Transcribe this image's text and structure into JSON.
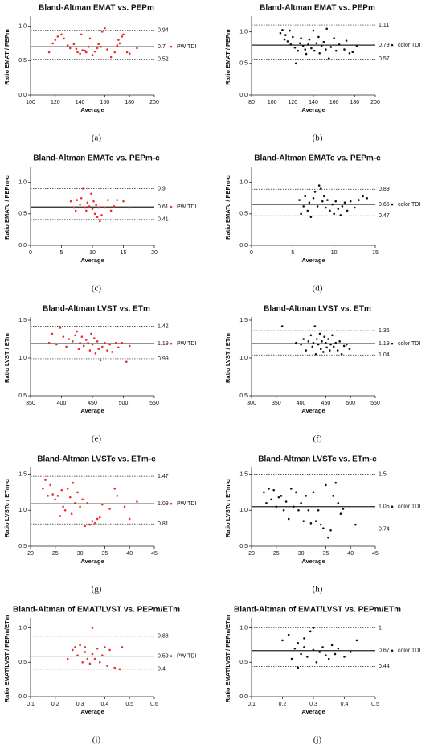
{
  "chart_data": [
    {
      "type": "scatter",
      "title": "Bland-Altman EMAT vs. PEPm",
      "x_label": "Average",
      "y_label": "Ratio EMAT / PEPm",
      "panel_label": "(a)",
      "xlim": [
        100,
        200
      ],
      "ylim": [
        0,
        1.1
      ],
      "xticks": [
        100,
        120,
        140,
        160,
        180,
        200
      ],
      "yticks": [
        {
          "value": 0,
          "label": "0.0"
        },
        0.5,
        {
          "value": 1,
          "label": "1.0"
        }
      ],
      "limits": {
        "upper": 0.94,
        "mean": 0.7,
        "lower": 0.52
      },
      "series": [
        {
          "name": "PW TDI",
          "color": "#e8302a",
          "x": [
            115,
            118,
            120,
            122,
            125,
            127,
            130,
            132,
            135,
            137,
            138,
            140,
            141,
            142,
            144,
            145,
            147,
            148,
            150,
            152,
            154,
            155,
            157,
            158,
            160,
            162,
            165,
            168,
            170,
            171,
            172,
            174,
            175,
            178,
            180,
            186
          ],
          "values": [
            0.62,
            0.75,
            0.8,
            0.85,
            0.88,
            0.82,
            0.72,
            0.68,
            0.74,
            0.67,
            0.62,
            0.6,
            0.88,
            0.65,
            0.64,
            0.62,
            0.7,
            0.82,
            0.58,
            0.63,
            0.68,
            0.74,
            0.7,
            0.92,
            0.97,
            0.66,
            0.55,
            0.62,
            0.72,
            0.8,
            0.75,
            0.85,
            0.88,
            0.62,
            0.6,
            0.68
          ]
        }
      ]
    },
    {
      "type": "scatter",
      "title": "Bland-Altman EMAT vs. PEPm",
      "x_label": "Average",
      "y_label": "Ratio EMAT / PEPm",
      "panel_label": "(b)",
      "xlim": [
        80,
        200
      ],
      "ylim": [
        0,
        1.2
      ],
      "xticks": [
        80,
        100,
        120,
        140,
        160,
        180,
        200
      ],
      "yticks": [
        {
          "value": 0,
          "label": "0.0"
        },
        0.5,
        {
          "value": 1,
          "label": "1.0"
        }
      ],
      "limits": {
        "upper": 1.11,
        "mean": 0.79,
        "lower": 0.57
      },
      "series": [
        {
          "name": "color TDI",
          "color": "#111111",
          "x": [
            108,
            110,
            112,
            113,
            115,
            117,
            118,
            120,
            122,
            123,
            125,
            127,
            128,
            130,
            132,
            133,
            135,
            136,
            138,
            140,
            141,
            143,
            145,
            146,
            148,
            150,
            152,
            153,
            155,
            157,
            160,
            162,
            165,
            170,
            172,
            175,
            178,
            182
          ],
          "values": [
            0.98,
            1.03,
            0.88,
            0.95,
            0.85,
            1.02,
            0.8,
            0.92,
            0.75,
            0.5,
            0.7,
            0.82,
            0.9,
            0.78,
            0.72,
            0.65,
            0.8,
            0.88,
            0.74,
            1.02,
            0.7,
            0.82,
            0.92,
            0.66,
            0.78,
            0.84,
            0.72,
            1.05,
            0.58,
            0.76,
            0.9,
            0.7,
            0.8,
            0.72,
            0.86,
            0.66,
            0.68,
            0.78
          ]
        }
      ]
    },
    {
      "type": "scatter",
      "title": "Bland-Altman EMATc vs. PEPm-c",
      "x_label": "Average",
      "y_label": "Ratio EMATc / PEPm-c",
      "panel_label": "(c)",
      "xlim": [
        0,
        20
      ],
      "ylim": [
        0,
        1.2
      ],
      "xticks": [
        0,
        5,
        10,
        15,
        20
      ],
      "yticks": [
        {
          "value": 0,
          "label": "0.0"
        },
        0.5,
        {
          "value": 1,
          "label": "1.0"
        }
      ],
      "limits": {
        "upper": 0.9,
        "mean": 0.61,
        "lower": 0.41
      },
      "series": [
        {
          "name": "PW TDI",
          "color": "#e8302a",
          "x": [
            6.5,
            7,
            7.3,
            7.5,
            8,
            8.2,
            8.5,
            8.8,
            9,
            9.2,
            9.5,
            9.8,
            10,
            10.2,
            10.4,
            10.6,
            10.8,
            11,
            11.2,
            11.5,
            12,
            12.5,
            13,
            13.5,
            14,
            15,
            16
          ],
          "values": [
            0.7,
            0.6,
            0.55,
            0.72,
            0.65,
            0.75,
            0.9,
            0.6,
            0.55,
            0.68,
            0.62,
            0.82,
            0.58,
            0.7,
            0.5,
            0.64,
            0.45,
            0.6,
            0.38,
            0.48,
            0.6,
            0.72,
            0.55,
            0.62,
            0.72,
            0.7,
            0.6
          ]
        }
      ]
    },
    {
      "type": "scatter",
      "title": "Bland-Altman EMATc vs. PEPm-c",
      "x_label": "Average",
      "y_label": "Ratio EMATc / PEPm-c",
      "panel_label": "(d)",
      "xlim": [
        0,
        15
      ],
      "ylim": [
        0,
        1.2
      ],
      "xticks": [
        0,
        5,
        10,
        15
      ],
      "yticks": [
        {
          "value": 0,
          "label": "0.0"
        },
        0.5,
        {
          "value": 1,
          "label": "1.0"
        }
      ],
      "limits": {
        "upper": 0.89,
        "mean": 0.65,
        "lower": 0.47
      },
      "series": [
        {
          "name": "color TDI",
          "color": "#111111",
          "x": [
            5.8,
            6,
            6.3,
            6.5,
            6.8,
            7,
            7.2,
            7.5,
            7.7,
            8,
            8.2,
            8.4,
            8.6,
            8.8,
            9,
            9.2,
            9.5,
            9.8,
            10,
            10.2,
            10.5,
            10.8,
            11,
            11.3,
            11.6,
            12,
            12.5,
            13,
            13.5,
            14
          ],
          "values": [
            0.72,
            0.5,
            0.62,
            0.78,
            0.55,
            0.68,
            0.45,
            0.75,
            0.85,
            0.62,
            0.95,
            0.9,
            0.7,
            0.78,
            0.6,
            0.72,
            0.55,
            0.65,
            0.5,
            0.7,
            0.58,
            0.48,
            0.62,
            0.68,
            0.55,
            0.7,
            0.6,
            0.72,
            0.78,
            0.75
          ]
        }
      ]
    },
    {
      "type": "scatter",
      "title": "Bland-Altman LVST vs. ETm",
      "x_label": "Average",
      "y_label": "Ratio LVST / ETm",
      "panel_label": "(e)",
      "xlim": [
        350,
        550
      ],
      "ylim": [
        0.5,
        1.5
      ],
      "xticks": [
        350,
        400,
        450,
        500,
        550
      ],
      "yticks": [
        0.5,
        {
          "value": 1,
          "label": "1.0"
        },
        1.5
      ],
      "limits": {
        "upper": 1.42,
        "mean": 1.19,
        "lower": 0.99
      },
      "series": [
        {
          "name": "PW TDI",
          "color": "#e8302a",
          "x": [
            380,
            385,
            392,
            398,
            403,
            408,
            412,
            418,
            422,
            425,
            428,
            430,
            433,
            436,
            440,
            443,
            446,
            448,
            450,
            453,
            455,
            458,
            460,
            463,
            466,
            470,
            474,
            478,
            482,
            488,
            492,
            498,
            505,
            510
          ],
          "values": [
            1.2,
            1.32,
            1.18,
            1.4,
            1.28,
            1.15,
            1.25,
            1.22,
            1.3,
            1.35,
            1.12,
            1.2,
            1.28,
            1.16,
            1.24,
            1.2,
            1.1,
            1.32,
            1.18,
            1.26,
            1.06,
            1.22,
            1.12,
            0.97,
            1.15,
            1.2,
            1.1,
            1.18,
            1.08,
            1.2,
            1.14,
            1.2,
            0.95,
            1.16
          ]
        }
      ]
    },
    {
      "type": "scatter",
      "title": "Bland-Altman LVST vs. ETm",
      "x_label": "Average",
      "y_label": "Ratio LVST / ETm",
      "panel_label": "(f)",
      "xlim": [
        300,
        550
      ],
      "ylim": [
        0.5,
        1.5
      ],
      "xticks": [
        300,
        350,
        400,
        450,
        500,
        550
      ],
      "yticks": [
        0.5,
        {
          "value": 1,
          "label": "1.0"
        },
        1.5
      ],
      "limits": {
        "upper": 1.36,
        "mean": 1.19,
        "lower": 1.04
      },
      "series": [
        {
          "name": "color TDI",
          "color": "#111111",
          "x": [
            362,
            390,
            400,
            405,
            410,
            415,
            420,
            423,
            425,
            428,
            430,
            432,
            435,
            438,
            440,
            442,
            445,
            447,
            450,
            452,
            455,
            458,
            460,
            463,
            466,
            470,
            474,
            478,
            482,
            487,
            492,
            498
          ],
          "values": [
            1.42,
            1.2,
            1.18,
            1.25,
            1.1,
            1.22,
            1.3,
            1.15,
            1.2,
            1.42,
            1.05,
            1.25,
            1.18,
            1.32,
            1.12,
            1.22,
            1.08,
            1.28,
            1.2,
            1.14,
            1.25,
            1.1,
            1.18,
            1.3,
            1.15,
            1.2,
            1.1,
            1.22,
            1.05,
            1.16,
            1.18,
            1.12
          ]
        }
      ]
    },
    {
      "type": "scatter",
      "title": "Bland-Altman LVSTc vs. ETm-c",
      "x_label": "Average",
      "y_label": "Ratio  LVSTc / ETm-c",
      "panel_label": "(g)",
      "xlim": [
        20,
        45
      ],
      "ylim": [
        0.5,
        1.55
      ],
      "xticks": [
        20,
        25,
        30,
        35,
        40,
        45
      ],
      "yticks": [
        0.5,
        {
          "value": 1,
          "label": "1.0"
        },
        1.5
      ],
      "limits": {
        "upper": 1.47,
        "mean": 1.09,
        "lower": 0.81
      },
      "series": [
        {
          "name": "PW TDI",
          "color": "#e8302a",
          "x": [
            22.5,
            23,
            23.5,
            24,
            24.5,
            25,
            25.5,
            26,
            26.3,
            26.6,
            27,
            27.5,
            28,
            28.3,
            28.6,
            29,
            29.5,
            30,
            30.5,
            31,
            31.5,
            32,
            32.5,
            33,
            33.5,
            34,
            34.5,
            36,
            37,
            37.5,
            39,
            40,
            41.5
          ],
          "values": [
            1.3,
            1.42,
            1.2,
            1.35,
            1.22,
            1.15,
            1.2,
            0.92,
            1.28,
            1.05,
            1.0,
            1.3,
            1.18,
            0.95,
            1.38,
            1.1,
            1.25,
            1.05,
            1.15,
            0.78,
            1.1,
            0.8,
            0.85,
            0.82,
            0.88,
            0.9,
            1.08,
            1.02,
            1.3,
            1.2,
            1.05,
            0.88,
            1.12
          ]
        }
      ]
    },
    {
      "type": "scatter",
      "title": "Bland-Altman LVSTc vs. ETm-c",
      "x_label": "Average",
      "y_label": "Ratio  LVSTc / ETm-c",
      "panel_label": "(h)",
      "xlim": [
        20,
        45
      ],
      "ylim": [
        0.5,
        1.55
      ],
      "xticks": [
        20,
        25,
        30,
        35,
        40,
        45
      ],
      "yticks": [
        0.5,
        {
          "value": 1,
          "label": "1.0"
        },
        1.5
      ],
      "limits": {
        "upper": 1.5,
        "mean": 1.05,
        "lower": 0.74
      },
      "series": [
        {
          "name": "color TDI",
          "color": "#111111",
          "x": [
            22.5,
            23,
            23.5,
            24,
            24.5,
            25,
            25.5,
            26,
            26.5,
            27,
            27.5,
            28,
            28.5,
            29,
            29.5,
            30,
            30.5,
            31,
            31.5,
            32,
            32.5,
            33,
            33.5,
            34,
            34.5,
            35,
            35.5,
            36,
            36.5,
            37,
            37.5,
            38,
            38.5,
            41
          ],
          "values": [
            1.25,
            1.1,
            1.3,
            1.15,
            1.28,
            1.05,
            1.18,
            1.2,
            1.0,
            1.12,
            0.88,
            1.3,
            1.05,
            1.25,
            1.0,
            1.1,
            0.85,
            1.2,
            1.0,
            0.82,
            1.25,
            0.85,
            1.0,
            0.8,
            0.75,
            1.35,
            0.62,
            0.72,
            1.2,
            1.38,
            1.1,
            0.95,
            1.02,
            0.8
          ]
        }
      ]
    },
    {
      "type": "scatter",
      "title": "Bland-Altman of EMAT/LVST vs. PEPm/ETm",
      "x_label": "Average",
      "y_label": "Ratio EMAT/LVST / PEPm/ETm",
      "panel_label": "(i)",
      "xlim": [
        0.1,
        0.6
      ],
      "ylim": [
        0,
        1.1
      ],
      "xticks": [
        0.1,
        0.2,
        0.3,
        0.4,
        0.5,
        0.6
      ],
      "yticks": [
        {
          "value": 0,
          "label": "0.0"
        },
        0.5,
        {
          "value": 1,
          "label": "1.0"
        }
      ],
      "limits": {
        "upper": 0.88,
        "mean": 0.59,
        "lower": 0.4
      },
      "series": [
        {
          "name": "PW TDI",
          "color": "#e8302a",
          "x": [
            0.25,
            0.27,
            0.28,
            0.29,
            0.3,
            0.31,
            0.32,
            0.32,
            0.33,
            0.34,
            0.35,
            0.35,
            0.36,
            0.37,
            0.38,
            0.39,
            0.4,
            0.41,
            0.42,
            0.44,
            0.46,
            0.47
          ],
          "values": [
            0.55,
            0.68,
            0.72,
            0.6,
            0.75,
            0.5,
            0.65,
            0.72,
            0.55,
            0.48,
            0.62,
            1.0,
            0.55,
            0.7,
            0.5,
            0.6,
            0.72,
            0.45,
            0.68,
            0.42,
            0.4,
            0.72
          ]
        }
      ]
    },
    {
      "type": "scatter",
      "title": "Bland-Altman of EMAT/LVST vs. PEPm/ETm",
      "x_label": "Average",
      "y_label": "Ratio EMAT/LVST / PEPm/ETm",
      "panel_label": "(j)",
      "xlim": [
        0.1,
        0.5
      ],
      "ylim": [
        0,
        1.1
      ],
      "xticks": [
        0.1,
        0.2,
        0.3,
        0.4,
        0.5
      ],
      "yticks": [
        {
          "value": 0,
          "label": "0.0"
        },
        0.5,
        {
          "value": 1,
          "label": "1.0"
        }
      ],
      "limits": {
        "upper": 1,
        "mean": 0.67,
        "lower": 0.44
      },
      "series": [
        {
          "name": "color TDI",
          "color": "#111111",
          "x": [
            0.2,
            0.22,
            0.23,
            0.24,
            0.25,
            0.25,
            0.26,
            0.27,
            0.27,
            0.28,
            0.29,
            0.3,
            0.3,
            0.31,
            0.32,
            0.33,
            0.34,
            0.35,
            0.36,
            0.37,
            0.38,
            0.4,
            0.42,
            0.44
          ],
          "values": [
            0.82,
            0.9,
            0.55,
            0.7,
            0.78,
            0.42,
            0.62,
            0.85,
            0.72,
            0.58,
            0.95,
            0.68,
            1.0,
            0.5,
            0.65,
            0.72,
            0.6,
            0.55,
            0.75,
            0.62,
            0.7,
            0.58,
            0.65,
            0.82
          ]
        }
      ]
    }
  ]
}
